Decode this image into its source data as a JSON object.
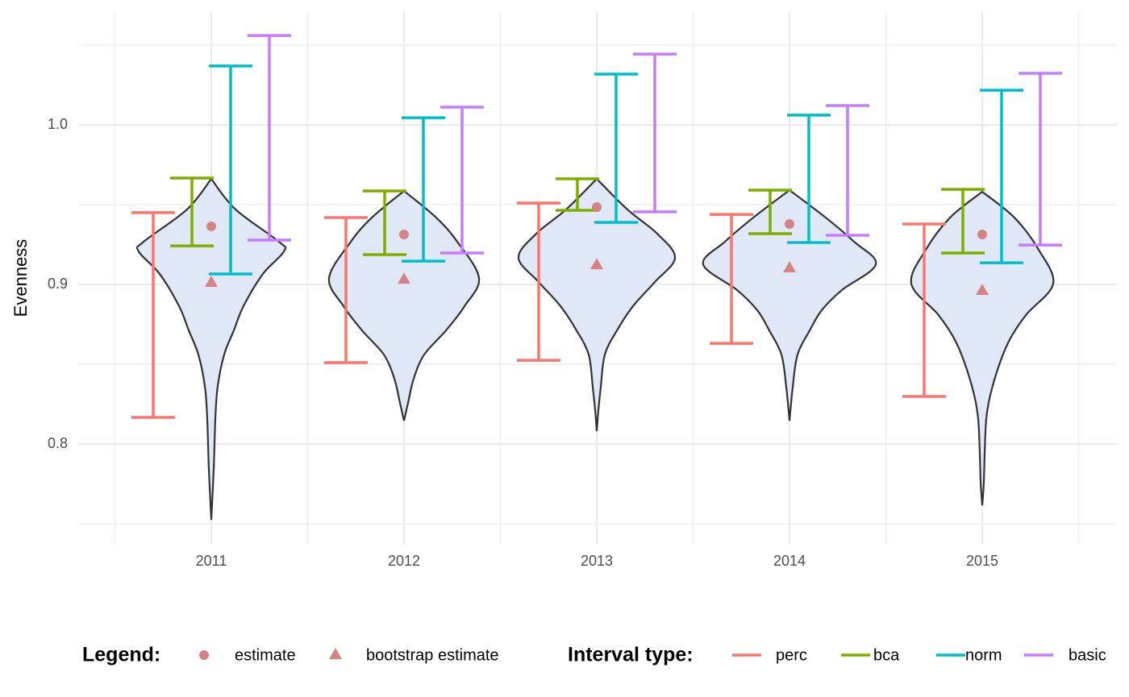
{
  "chart_data": {
    "type": "violin",
    "y_label": "Evenness",
    "categories": [
      "2011",
      "2012",
      "2013",
      "2014",
      "2015"
    ],
    "ylim": [
      0.7374,
      1.0707
    ],
    "yticks": [
      0.8,
      0.9,
      {
        "value": 1,
        "label": "1.0"
      }
    ],
    "yminor": [
      0.75,
      0.85,
      0.95,
      1.05
    ],
    "grid": true,
    "violin_fill": "#e0e8f8",
    "violin_stroke": "#333333",
    "violins": [
      {
        "y": [
          0.9662,
          0.947,
          0.9268,
          0.9207,
          0.9066,
          0.8864,
          0.8712,
          0.8561,
          0.8359,
          0.8157,
          0.7854,
          0.7525
        ],
        "half_width": [
          0,
          0.126,
          0.351,
          0.377,
          0.268,
          0.167,
          0.117,
          0.067,
          0.033,
          0.021,
          0.013,
          0
        ]
      },
      {
        "y": [
          0.9586,
          0.9419,
          0.9268,
          0.904,
          0.8864,
          0.8712,
          0.8561,
          0.8409,
          0.8258,
          0.8146
        ],
        "half_width": [
          0,
          0.167,
          0.276,
          0.389,
          0.314,
          0.218,
          0.105,
          0.05,
          0.021,
          0
        ]
      },
      {
        "y": [
          0.9662,
          0.947,
          0.9318,
          0.9167,
          0.9015,
          0.8864,
          0.8712,
          0.8561,
          0.8359,
          0.8207,
          0.8081
        ],
        "half_width": [
          0,
          0.159,
          0.314,
          0.406,
          0.301,
          0.188,
          0.105,
          0.042,
          0.021,
          0.008,
          0
        ]
      },
      {
        "y": [
          0.9591,
          0.9419,
          0.9268,
          0.9126,
          0.8965,
          0.8838,
          0.8712,
          0.8561,
          0.8359,
          0.8146
        ],
        "half_width": [
          0,
          0.188,
          0.335,
          0.448,
          0.272,
          0.167,
          0.105,
          0.042,
          0.017,
          0
        ]
      },
      {
        "y": [
          0.9581,
          0.9419,
          0.9217,
          0.9005,
          0.8813,
          0.8662,
          0.851,
          0.8308,
          0.8157,
          0.7955,
          0.7753,
          0.7616
        ],
        "half_width": [
          0,
          0.167,
          0.293,
          0.368,
          0.23,
          0.146,
          0.092,
          0.042,
          0.021,
          0.013,
          0.008,
          0
        ]
      }
    ],
    "legend_title": "Legend:",
    "points": [
      {
        "name": "estimate",
        "shape": "circle",
        "color": "#d48484",
        "values": [
          0.9364,
          0.9313,
          0.9485,
          0.9379,
          0.9313
        ]
      },
      {
        "name": "bootstrap estimate",
        "shape": "triangle",
        "color": "#d48484",
        "values": [
          0.9015,
          0.9035,
          0.9126,
          0.9106,
          0.8965
        ]
      }
    ],
    "interval_legend_title": "Interval type:",
    "intervals": [
      {
        "name": "perc",
        "color": "#F8766D",
        "lower": [
          0.8167,
          0.851,
          0.8525,
          0.8631,
          0.8298
        ],
        "upper": [
          0.945,
          0.9419,
          0.951,
          0.9439,
          0.9379
        ]
      },
      {
        "name": "bca",
        "color": "#7CAE00",
        "lower": [
          0.9242,
          0.9187,
          0.9465,
          0.9318,
          0.9197
        ],
        "upper": [
          0.9667,
          0.9586,
          0.9662,
          0.9591,
          0.9596
        ]
      },
      {
        "name": "norm",
        "color": "#00BFC4",
        "lower": [
          0.9066,
          0.9146,
          0.9389,
          0.9263,
          0.9136
        ],
        "upper": [
          1.0369,
          1.0045,
          1.0318,
          1.0061,
          1.0217
        ]
      },
      {
        "name": "basic",
        "color": "#C77CFF",
        "lower": [
          0.9278,
          0.9197,
          0.9455,
          0.9308,
          0.9247
        ],
        "upper": [
          1.056,
          1.0111,
          1.0444,
          1.0121,
          1.0323
        ]
      }
    ]
  }
}
